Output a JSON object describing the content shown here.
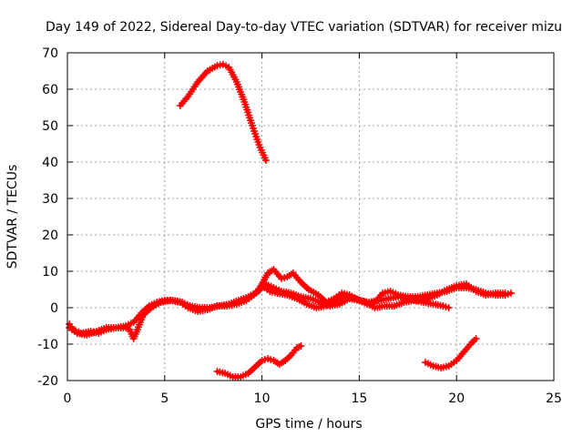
{
  "chart_data": {
    "type": "scatter",
    "title": "Day 149 of 2022, Sidereal Day-to-day VTEC variation (SDTVAR) for receiver mizu",
    "xlabel": "GPS time / hours",
    "ylabel": "SDTVAR / TECUs",
    "xlim": [
      0,
      25
    ],
    "ylim": [
      -20,
      70
    ],
    "xticks": [
      0,
      5,
      10,
      15,
      20,
      25
    ],
    "yticks": [
      -20,
      -10,
      0,
      10,
      20,
      30,
      40,
      50,
      60,
      70
    ],
    "grid": true,
    "colors": {
      "series": "#ff0000",
      "grid": "#a0a0a0",
      "axis": "#000000"
    },
    "series": [
      {
        "name": "arc-high",
        "points": [
          [
            5.8,
            55.5
          ],
          [
            6.2,
            58
          ],
          [
            6.7,
            62
          ],
          [
            7.2,
            65
          ],
          [
            7.7,
            66.5
          ],
          [
            8.0,
            66.8
          ],
          [
            8.3,
            66
          ],
          [
            8.7,
            62
          ],
          [
            9.1,
            56.5
          ],
          [
            9.5,
            50
          ],
          [
            9.9,
            44
          ],
          [
            10.2,
            40.5
          ]
        ]
      },
      {
        "name": "arc-main-a",
        "points": [
          [
            0.1,
            -4.5
          ],
          [
            0.3,
            -6
          ],
          [
            0.7,
            -7
          ],
          [
            1.2,
            -6.5
          ],
          [
            1.6,
            -7
          ],
          [
            2.0,
            -6
          ],
          [
            2.5,
            -5.5
          ],
          [
            3.0,
            -5
          ],
          [
            3.4,
            -4
          ],
          [
            3.8,
            -1.5
          ],
          [
            4.2,
            0.5
          ],
          [
            4.6,
            1.5
          ],
          [
            5.0,
            2
          ],
          [
            5.4,
            2
          ],
          [
            5.9,
            1.5
          ],
          [
            6.3,
            0.5
          ],
          [
            6.8,
            0
          ],
          [
            7.3,
            0
          ],
          [
            7.8,
            0.5
          ],
          [
            8.3,
            1
          ],
          [
            8.8,
            2
          ],
          [
            9.3,
            3
          ],
          [
            9.8,
            4.5
          ],
          [
            10.2,
            6.5
          ],
          [
            10.6,
            5.5
          ],
          [
            11.0,
            4.5
          ],
          [
            11.5,
            4
          ],
          [
            12.0,
            3
          ],
          [
            12.5,
            2.5
          ],
          [
            13.0,
            1.5
          ],
          [
            13.5,
            0.5
          ],
          [
            14.0,
            1
          ],
          [
            14.5,
            2.5
          ],
          [
            15.0,
            2
          ],
          [
            15.5,
            1.5
          ],
          [
            16.0,
            2
          ],
          [
            16.5,
            2.5
          ],
          [
            17.0,
            3
          ],
          [
            17.5,
            2.5
          ],
          [
            18.0,
            2
          ],
          [
            18.5,
            2.5
          ],
          [
            19.0,
            3.5
          ],
          [
            19.5,
            5
          ],
          [
            20.0,
            6
          ],
          [
            20.5,
            6.5
          ],
          [
            21.0,
            4.5
          ],
          [
            21.5,
            3.5
          ],
          [
            22.0,
            4
          ],
          [
            22.5,
            4
          ]
        ]
      },
      {
        "name": "arc-main-b",
        "points": [
          [
            0.1,
            -5.5
          ],
          [
            0.5,
            -7
          ],
          [
            1.0,
            -7.5
          ],
          [
            1.5,
            -6.5
          ],
          [
            2.0,
            -5.5
          ],
          [
            2.5,
            -5.5
          ],
          [
            3.0,
            -5.5
          ],
          [
            3.2,
            -6
          ],
          [
            3.4,
            -8.5
          ],
          [
            3.6,
            -6
          ],
          [
            3.9,
            -2
          ],
          [
            4.3,
            0
          ],
          [
            4.8,
            1.5
          ],
          [
            5.3,
            2
          ],
          [
            5.8,
            1.5
          ],
          [
            6.2,
            0
          ],
          [
            6.7,
            -1
          ],
          [
            7.2,
            -0.5
          ],
          [
            7.7,
            0.5
          ],
          [
            8.2,
            0.5
          ],
          [
            8.7,
            1
          ],
          [
            9.2,
            2
          ],
          [
            9.7,
            4
          ],
          [
            10.0,
            6.5
          ],
          [
            10.3,
            9.5
          ],
          [
            10.6,
            10.5
          ],
          [
            11.0,
            8
          ],
          [
            11.3,
            8.5
          ],
          [
            11.6,
            9.5
          ],
          [
            12.0,
            7
          ],
          [
            12.4,
            5
          ],
          [
            12.9,
            3.5
          ],
          [
            13.3,
            1.5
          ],
          [
            13.7,
            2.5
          ],
          [
            14.1,
            4
          ],
          [
            14.5,
            3.5
          ],
          [
            15.0,
            2
          ],
          [
            15.4,
            1
          ],
          [
            15.8,
            1.5
          ],
          [
            16.2,
            4
          ],
          [
            16.6,
            4.5
          ],
          [
            17.0,
            3.5
          ],
          [
            17.5,
            3
          ],
          [
            18.0,
            3
          ],
          [
            18.5,
            3.5
          ],
          [
            19.0,
            4
          ],
          [
            19.5,
            4.5
          ],
          [
            20.0,
            5.5
          ],
          [
            20.5,
            5.5
          ],
          [
            21.0,
            5
          ],
          [
            21.5,
            4
          ],
          [
            22.0,
            3.5
          ],
          [
            22.5,
            3.5
          ],
          [
            22.8,
            4
          ]
        ]
      },
      {
        "name": "arc-main-c",
        "points": [
          [
            10.0,
            6
          ],
          [
            10.4,
            4.5
          ],
          [
            10.8,
            4
          ],
          [
            11.3,
            3.5
          ],
          [
            11.8,
            2.5
          ],
          [
            12.3,
            1
          ],
          [
            12.8,
            0
          ],
          [
            13.3,
            0.5
          ],
          [
            13.8,
            2
          ],
          [
            14.3,
            3
          ],
          [
            14.8,
            2.5
          ],
          [
            15.3,
            1.5
          ],
          [
            15.8,
            0
          ],
          [
            16.3,
            0.5
          ],
          [
            16.8,
            0.5
          ],
          [
            17.3,
            1.5
          ],
          [
            17.8,
            2
          ],
          [
            18.3,
            1.5
          ],
          [
            18.8,
            1
          ],
          [
            19.3,
            0.5
          ],
          [
            19.6,
            0
          ]
        ]
      },
      {
        "name": "arc-low-a",
        "points": [
          [
            7.7,
            -17.5
          ],
          [
            8.1,
            -18
          ],
          [
            8.5,
            -19
          ],
          [
            8.9,
            -19
          ],
          [
            9.3,
            -18
          ],
          [
            9.7,
            -16
          ],
          [
            10.0,
            -14.5
          ],
          [
            10.3,
            -14
          ],
          [
            10.6,
            -14.5
          ],
          [
            10.9,
            -15.5
          ],
          [
            11.2,
            -14.5
          ],
          [
            11.5,
            -13
          ],
          [
            11.8,
            -11
          ],
          [
            12.0,
            -10.5
          ]
        ]
      },
      {
        "name": "arc-low-b",
        "points": [
          [
            18.4,
            -15
          ],
          [
            18.8,
            -16
          ],
          [
            19.2,
            -16.5
          ],
          [
            19.6,
            -16
          ],
          [
            20.0,
            -14.5
          ],
          [
            20.4,
            -12
          ],
          [
            20.8,
            -9.5
          ],
          [
            21.0,
            -8.5
          ]
        ]
      }
    ]
  }
}
